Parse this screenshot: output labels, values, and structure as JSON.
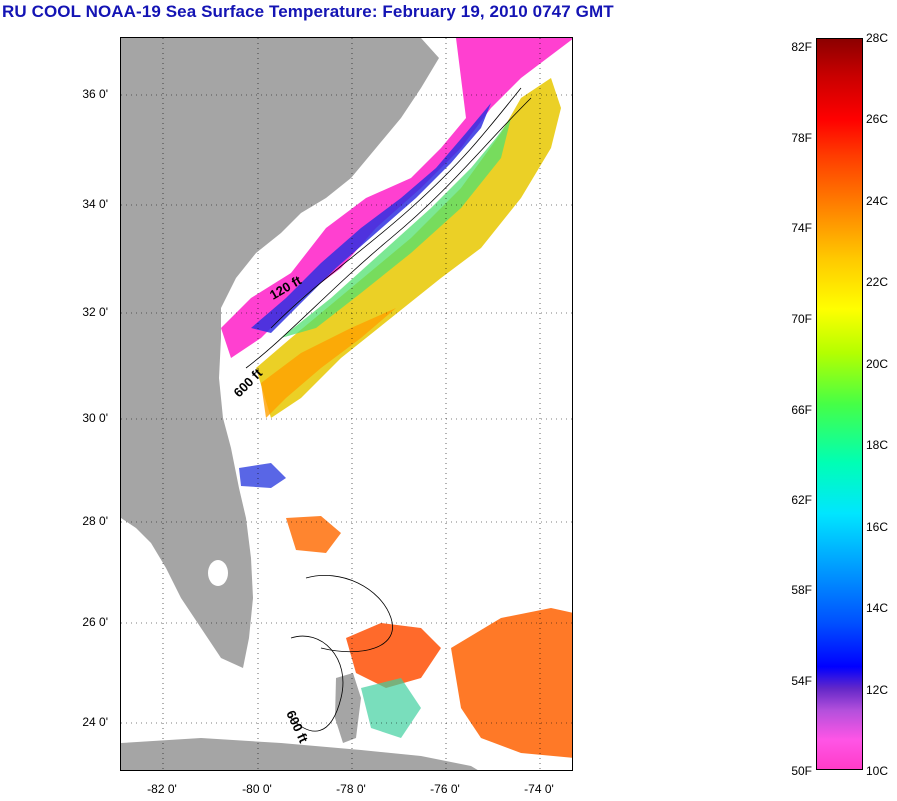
{
  "title": "RU COOL  NOAA-19  Sea Surface Temperature:  February 19, 2010 0747 GMT",
  "map": {
    "y_ticks": [
      "36 0'",
      "34 0'",
      "32 0'",
      "30 0'",
      "28 0'",
      "26 0'",
      "24 0'"
    ],
    "x_ticks": [
      "-82 0'",
      "-80 0'",
      "-78 0'",
      "-76 0'",
      "-74 0'"
    ],
    "contour_labels": [
      "120 ft",
      "600 ft",
      "600 ft"
    ],
    "colors": {
      "land": "#a5a5a5",
      "cloud": "#ffffff",
      "contour": "#000000"
    }
  },
  "colorbar": {
    "fahrenheit_labels": [
      "82F",
      "78F",
      "74F",
      "70F",
      "66F",
      "62F",
      "58F",
      "54F",
      "50F"
    ],
    "celsius_labels": [
      "28C",
      "26C",
      "24C",
      "22C",
      "20C",
      "18C",
      "16C",
      "14C",
      "12C",
      "10C"
    ]
  }
}
